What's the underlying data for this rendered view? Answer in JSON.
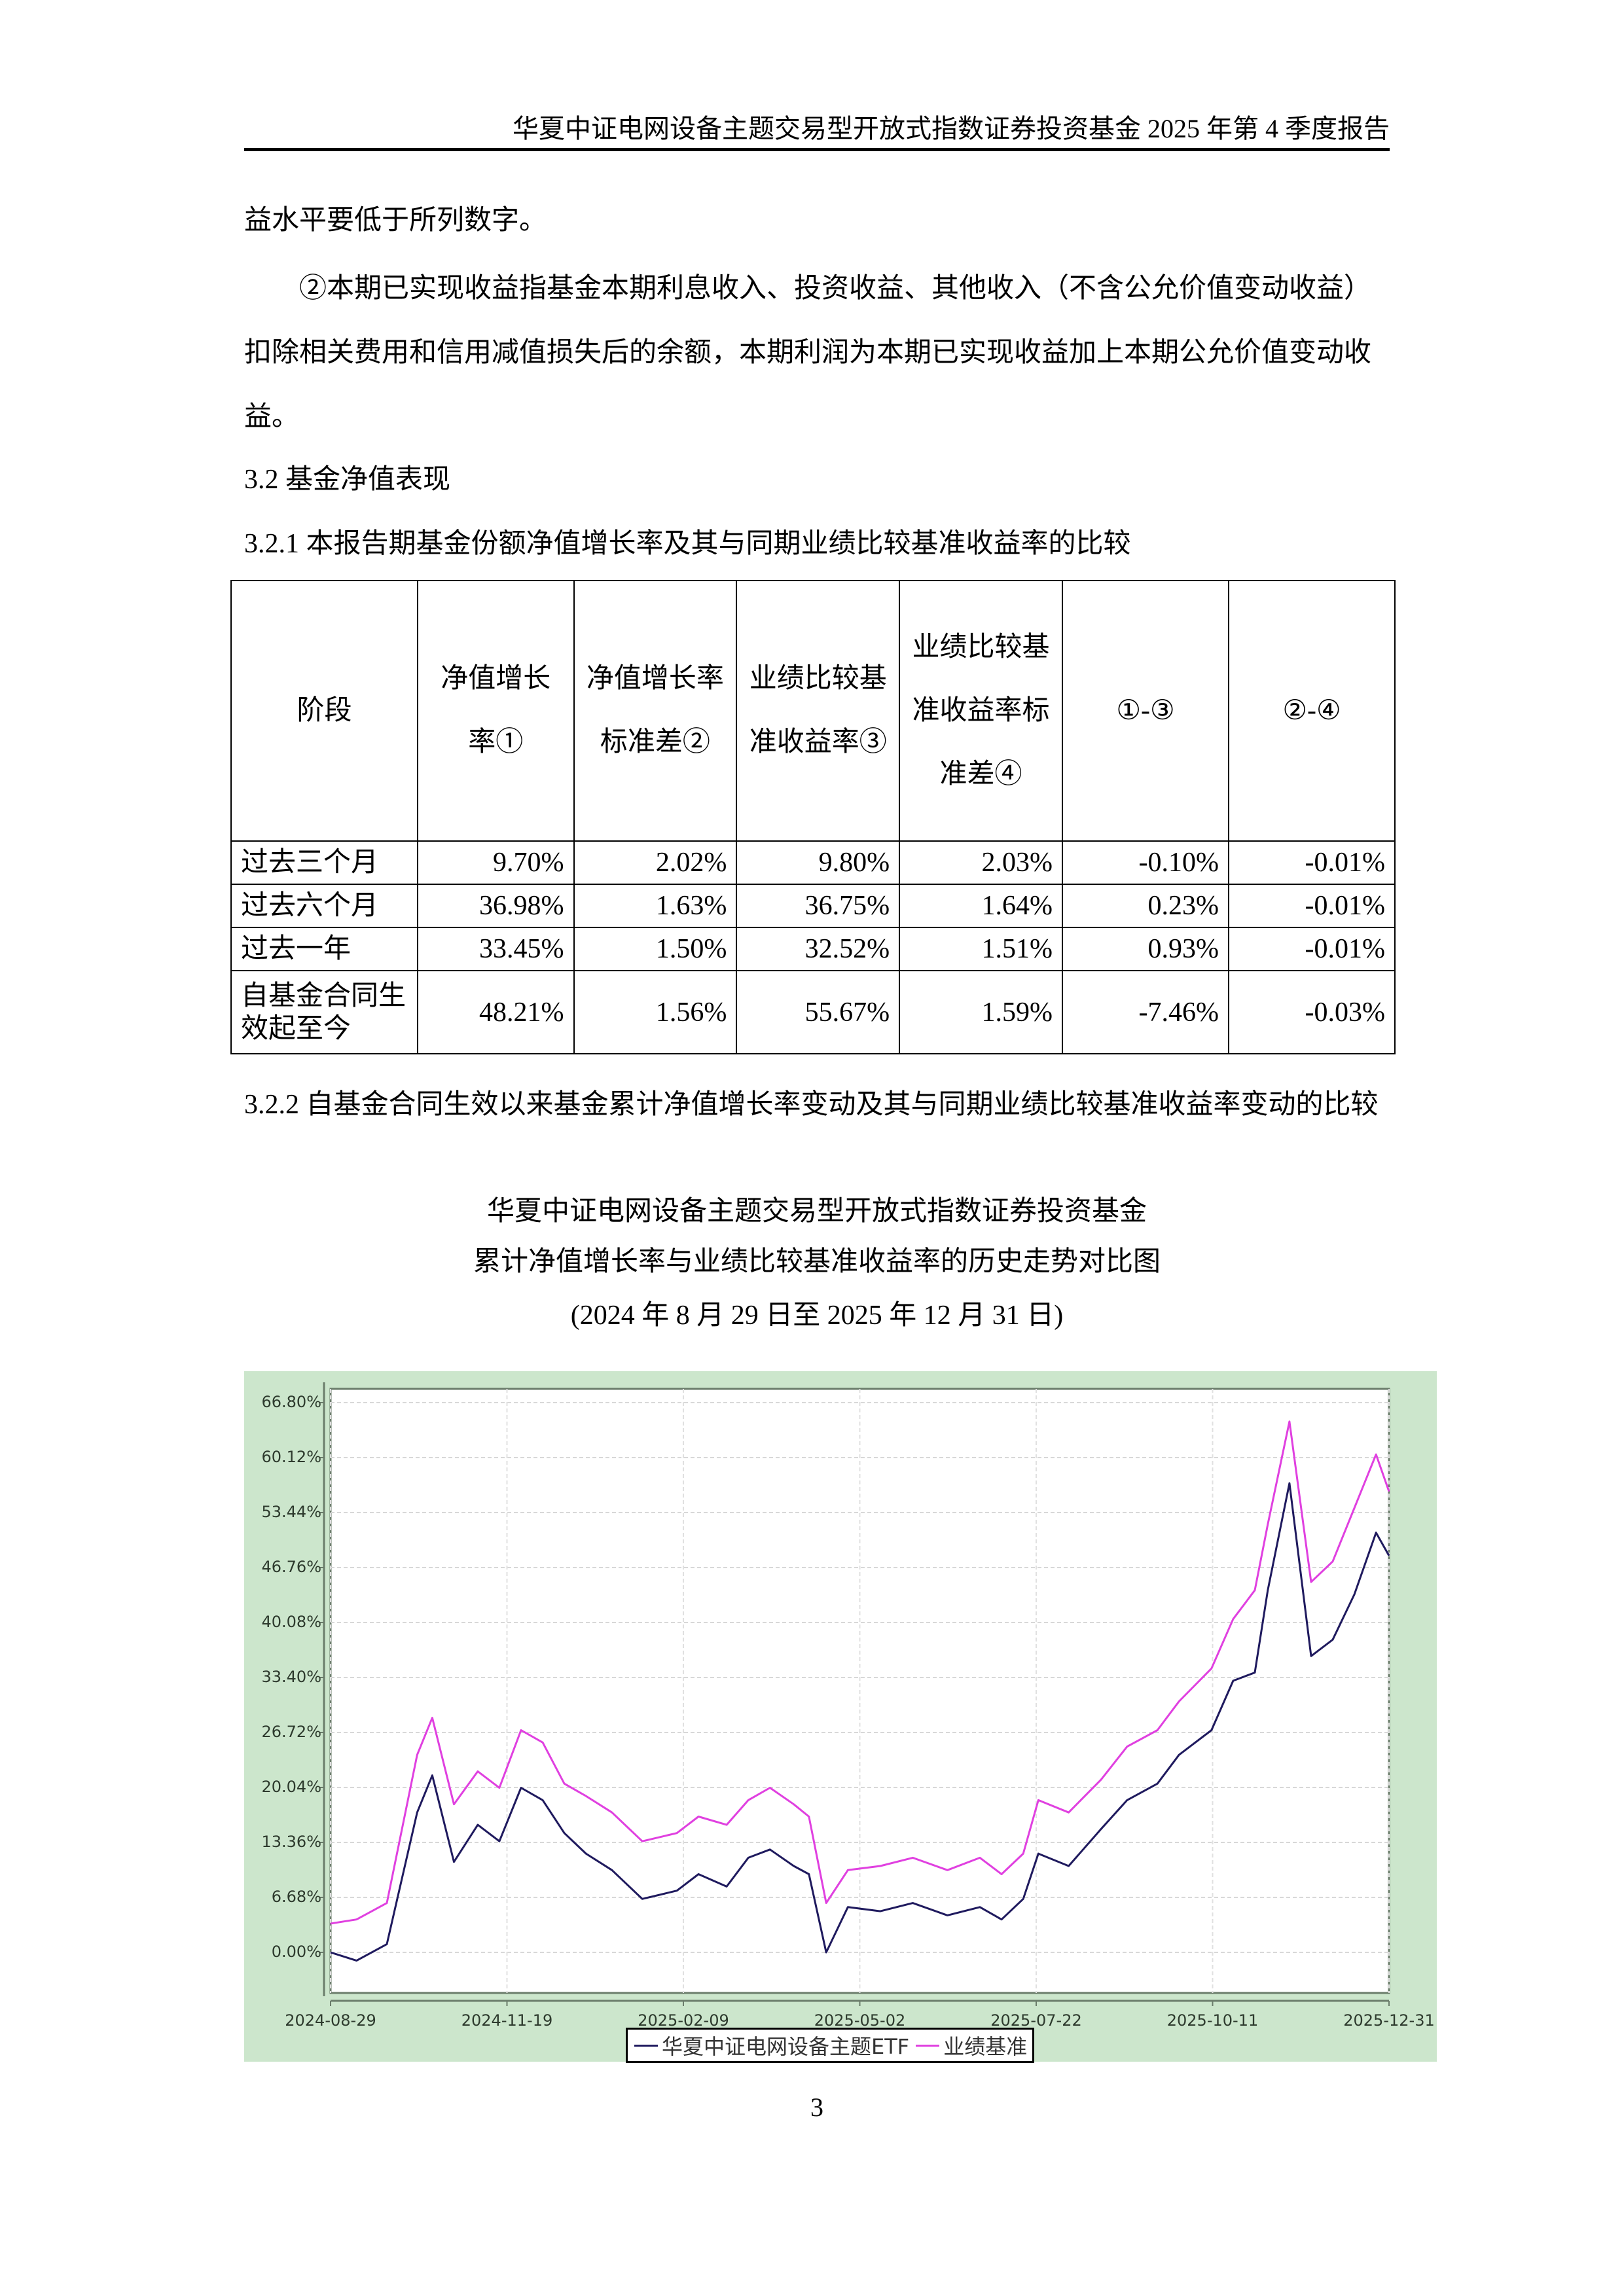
{
  "header": {
    "title": "华夏中证电网设备主题交易型开放式指数证券投资基金 2025 年第 4 季度报告"
  },
  "paragraphs": [
    "益水平要低于所列数字。",
    "②本期已实现收益指基金本期利息收入、投资收益、其他收入（不含公允价值变动收益）扣除相关费用和信用减值损失后的余额，本期利润为本期已实现收益加上本期公允价值变动收益。"
  ],
  "section_3_2": {
    "title": "3.2  基金净值表现"
  },
  "section_3_2_1": {
    "title": "3.2.1  本报告期基金份额净值增长率及其与同期业绩比较基准收益率的比较"
  },
  "table": {
    "headers": [
      "阶段",
      "净值增长率①",
      "净值增长率标准差②",
      "业绩比较基准收益率③",
      "业绩比较基准收益率标准差④",
      "①-③",
      "②-④"
    ],
    "rows": [
      {
        "period": "过去三个月",
        "values": [
          "9.70%",
          "2.02%",
          "9.80%",
          "2.03%",
          "-0.10%",
          "-0.01%"
        ]
      },
      {
        "period": "过去六个月",
        "values": [
          "36.98%",
          "1.63%",
          "36.75%",
          "1.64%",
          "0.23%",
          "-0.01%"
        ]
      },
      {
        "period": "过去一年",
        "values": [
          "33.45%",
          "1.50%",
          "32.52%",
          "1.51%",
          "0.93%",
          "-0.01%"
        ]
      },
      {
        "period": "自基金合同生效起至今",
        "values": [
          "48.21%",
          "1.56%",
          "55.67%",
          "1.59%",
          "-7.46%",
          "-0.03%"
        ]
      }
    ]
  },
  "section_3_2_2": {
    "title": "3.2.2  自基金合同生效以来基金累计净值增长率变动及其与同期业绩比较基准收益率变动的比较"
  },
  "chart_caption": {
    "line1": "华夏中证电网设备主题交易型开放式指数证券投资基金",
    "line2": "累计净值增长率与业绩比较基准收益率的历史走势对比图",
    "line3": "(2024 年 8 月 29 日至 2025 年 12 月 31 日)"
  },
  "chart_data": {
    "type": "line",
    "title": "累计净值增长率与业绩比较基准收益率的历史走势对比图",
    "xlabel": "",
    "ylabel": "",
    "ylim": [
      -3.0,
      68.5
    ],
    "yticks": [
      "0.00%",
      "6.68%",
      "13.36%",
      "20.04%",
      "26.72%",
      "33.40%",
      "40.08%",
      "46.76%",
      "53.44%",
      "60.12%",
      "66.80%"
    ],
    "xticks": [
      "2024-08-29",
      "2024-11-19",
      "2025-02-09",
      "2025-05-02",
      "2025-07-22",
      "2025-10-11",
      "2025-12-31"
    ],
    "grid": true,
    "legend_position": "bottom",
    "x": [
      "2024-08-29",
      "2024-09-10",
      "2024-09-24",
      "2024-10-08",
      "2024-10-15",
      "2024-10-25",
      "2024-11-05",
      "2024-11-15",
      "2024-11-25",
      "2024-12-05",
      "2024-12-15",
      "2024-12-25",
      "2025-01-06",
      "2025-01-20",
      "2025-02-05",
      "2025-02-15",
      "2025-02-28",
      "2025-03-10",
      "2025-03-20",
      "2025-03-31",
      "2025-04-07",
      "2025-04-15",
      "2025-04-25",
      "2025-05-10",
      "2025-05-25",
      "2025-06-10",
      "2025-06-25",
      "2025-07-05",
      "2025-07-15",
      "2025-07-22",
      "2025-08-05",
      "2025-08-20",
      "2025-09-01",
      "2025-09-15",
      "2025-09-25",
      "2025-10-10",
      "2025-10-20",
      "2025-10-30",
      "2025-11-05",
      "2025-11-15",
      "2025-11-25",
      "2025-12-05",
      "2025-12-15",
      "2025-12-25",
      "2025-12-31"
    ],
    "series": [
      {
        "name": "华夏中证电网设备主题ETF",
        "color": "#1f1a5e",
        "values": [
          0.0,
          -1.0,
          1.0,
          17.0,
          21.5,
          11.0,
          15.5,
          13.5,
          20.0,
          18.5,
          14.5,
          12.0,
          10.0,
          6.5,
          7.5,
          9.5,
          8.0,
          11.5,
          12.5,
          10.5,
          9.5,
          0.0,
          5.5,
          5.0,
          6.0,
          4.5,
          5.5,
          4.0,
          6.5,
          12.0,
          10.5,
          15.0,
          18.5,
          20.5,
          24.0,
          27.0,
          33.0,
          34.0,
          44.0,
          57.0,
          36.0,
          38.0,
          43.5,
          51.0,
          48.2
        ]
      },
      {
        "name": "业绩基准",
        "color": "#e040e0",
        "values": [
          3.5,
          4.0,
          6.0,
          24.0,
          28.5,
          18.0,
          22.0,
          20.0,
          27.0,
          25.5,
          20.5,
          19.0,
          17.0,
          13.5,
          14.5,
          16.5,
          15.5,
          18.5,
          20.0,
          18.0,
          16.5,
          6.0,
          10.0,
          10.5,
          11.5,
          10.0,
          11.5,
          9.5,
          12.0,
          18.5,
          17.0,
          21.0,
          25.0,
          27.0,
          30.5,
          34.5,
          40.5,
          44.0,
          52.0,
          64.5,
          45.0,
          47.5,
          54.0,
          60.5,
          56.0
        ]
      }
    ]
  },
  "chart": {
    "legend": {
      "fund": "华夏中证电网设备主题ETF",
      "benchmark": "业绩基准"
    },
    "colors": {
      "panel_bg": "#cce6cc",
      "plot_bg": "#ffffff",
      "fund": "#1f1a5e",
      "benchmark": "#e040e0",
      "axis": "#6b7d6b"
    }
  },
  "footer": {
    "page_number": "3"
  }
}
